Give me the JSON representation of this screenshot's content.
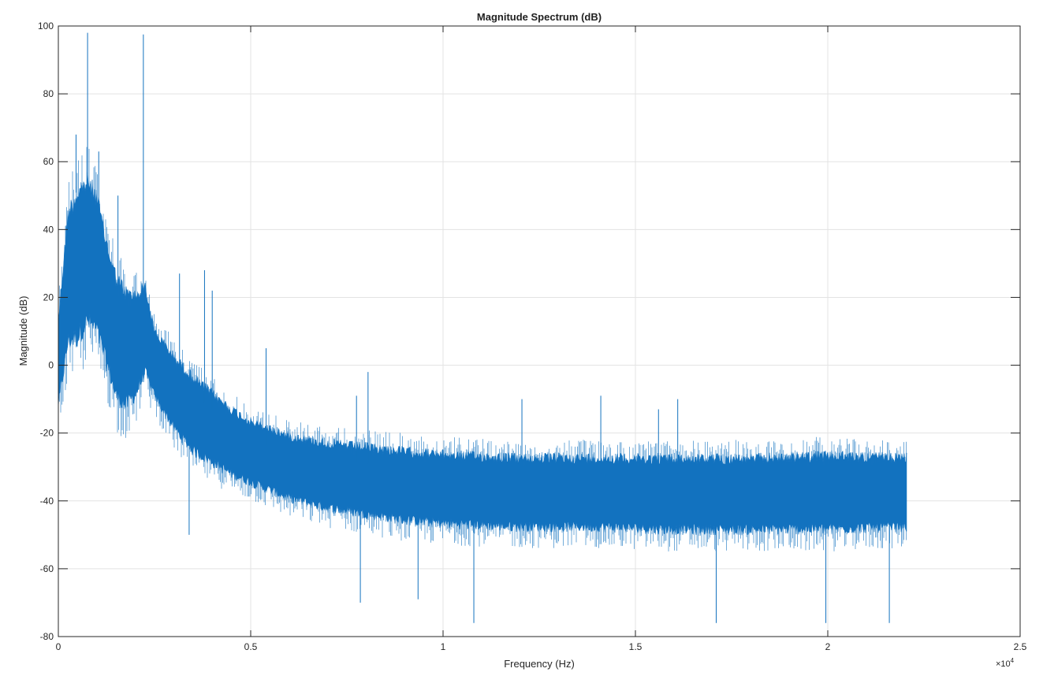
{
  "chart_data": {
    "type": "line",
    "title": "Magnitude Spectrum (dB)",
    "xlabel": "Frequency (Hz)",
    "ylabel": "Magnitude (dB)",
    "xlim": [
      0,
      25000
    ],
    "ylim": [
      -80,
      100
    ],
    "x_exponent_label": "×10",
    "x_exponent_power": "4",
    "grid": true,
    "legend": null,
    "line_color": "#1372BF",
    "x_ticks": [
      0,
      5000,
      10000,
      15000,
      20000,
      25000
    ],
    "x_tick_labels": [
      "0",
      "0.5",
      "1",
      "1.5",
      "2",
      "2.5"
    ],
    "y_ticks": [
      -80,
      -60,
      -40,
      -20,
      0,
      20,
      40,
      60,
      80,
      100
    ],
    "y_tick_labels": [
      "-80",
      "-60",
      "-40",
      "-20",
      "0",
      "20",
      "40",
      "60",
      "80",
      "100"
    ],
    "data_range_hz": [
      0,
      22050
    ],
    "envelope": {
      "description": "Approximate upper/lower envelope of the dense FFT magnitude trace",
      "frequency_hz": [
        0,
        250,
        500,
        750,
        1000,
        1250,
        1500,
        1750,
        2000,
        2250,
        2500,
        3000,
        3500,
        4000,
        4500,
        5000,
        6000,
        7000,
        8000,
        9000,
        10000,
        12000,
        14000,
        16000,
        18000,
        20000,
        22050
      ],
      "upper_db": [
        20,
        55,
        62,
        65,
        60,
        45,
        35,
        30,
        28,
        30,
        15,
        8,
        2,
        -3,
        -8,
        -12,
        -16,
        -18,
        -19,
        -20,
        -21,
        -22,
        -22,
        -22,
        -22,
        -21,
        -22
      ],
      "lower_db": [
        -20,
        -5,
        -5,
        0,
        -2,
        -10,
        -20,
        -22,
        -18,
        -10,
        -15,
        -25,
        -32,
        -35,
        -38,
        -40,
        -45,
        -48,
        -50,
        -52,
        -53,
        -54,
        -54,
        -55,
        -55,
        -55,
        -54
      ]
    },
    "peaks": [
      {
        "frequency_hz": 760,
        "magnitude_db": 98
      },
      {
        "frequency_hz": 2210,
        "magnitude_db": 97.5
      },
      {
        "frequency_hz": 460,
        "magnitude_db": 68
      },
      {
        "frequency_hz": 1050,
        "magnitude_db": 63
      },
      {
        "frequency_hz": 1550,
        "magnitude_db": 50
      },
      {
        "frequency_hz": 3800,
        "magnitude_db": 28
      },
      {
        "frequency_hz": 4000,
        "magnitude_db": 22
      },
      {
        "frequency_hz": 3150,
        "magnitude_db": 27
      },
      {
        "frequency_hz": 5400,
        "magnitude_db": 5
      },
      {
        "frequency_hz": 7750,
        "magnitude_db": -9
      },
      {
        "frequency_hz": 8050,
        "magnitude_db": -2
      },
      {
        "frequency_hz": 12050,
        "magnitude_db": -10
      },
      {
        "frequency_hz": 14100,
        "magnitude_db": -9
      },
      {
        "frequency_hz": 15600,
        "magnitude_db": -13
      },
      {
        "frequency_hz": 16100,
        "magnitude_db": -10
      }
    ],
    "dips": [
      {
        "frequency_hz": 3400,
        "magnitude_db": -50
      },
      {
        "frequency_hz": 7850,
        "magnitude_db": -70
      },
      {
        "frequency_hz": 9350,
        "magnitude_db": -69
      },
      {
        "frequency_hz": 10800,
        "magnitude_db": -76
      },
      {
        "frequency_hz": 17100,
        "magnitude_db": -76
      },
      {
        "frequency_hz": 19950,
        "magnitude_db": -76
      },
      {
        "frequency_hz": 21600,
        "magnitude_db": -76
      }
    ]
  }
}
